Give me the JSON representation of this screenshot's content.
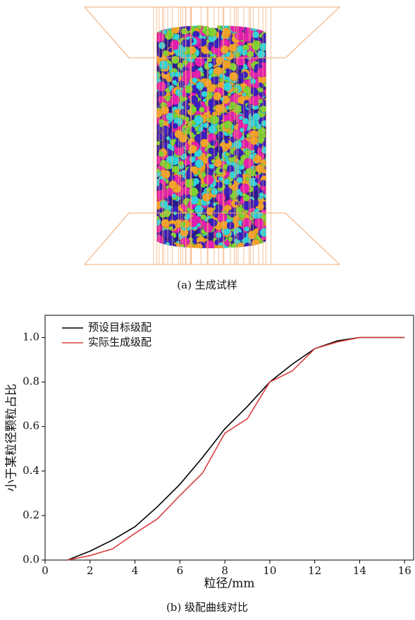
{
  "captions": [
    "(a) 生成试样",
    "(b) 级配曲线对比"
  ],
  "chart_data": {
    "type": "line",
    "xlabel": "粒径/mm",
    "ylabel": "小于某粒径颗粒占比",
    "x": [
      1,
      2,
      3,
      4,
      5,
      6,
      7,
      8,
      9,
      10,
      11,
      12,
      13,
      14,
      15,
      16
    ],
    "series": [
      {
        "name": "预设目标级配",
        "color": "#000000",
        "values": [
          0,
          0.04,
          0.09,
          0.15,
          0.24,
          0.34,
          0.46,
          0.59,
          0.69,
          0.8,
          0.88,
          0.95,
          0.985,
          1.0,
          1.0,
          1.0
        ]
      },
      {
        "name": "实际生成级配",
        "color": "#d9413f",
        "values": [
          0,
          0.02,
          0.05,
          0.12,
          0.185,
          0.29,
          0.39,
          0.57,
          0.635,
          0.8,
          0.85,
          0.95,
          0.98,
          1.0,
          1.0,
          1.0
        ]
      }
    ],
    "xlim": [
      0,
      16.4
    ],
    "ylim": [
      0,
      1.1
    ],
    "xticks": [
      0,
      2,
      4,
      6,
      8,
      10,
      12,
      14,
      16
    ],
    "yticks": [
      {
        "value": 0,
        "label": "0.0"
      },
      {
        "value": 0.2,
        "label": "0.2"
      },
      {
        "value": 0.4,
        "label": "0.4"
      },
      {
        "value": 0.6,
        "label": "0.6"
      },
      {
        "value": 0.8,
        "label": "0.8"
      },
      {
        "value": 1.0,
        "label": "1.0"
      }
    ],
    "legend": "upper-left"
  }
}
